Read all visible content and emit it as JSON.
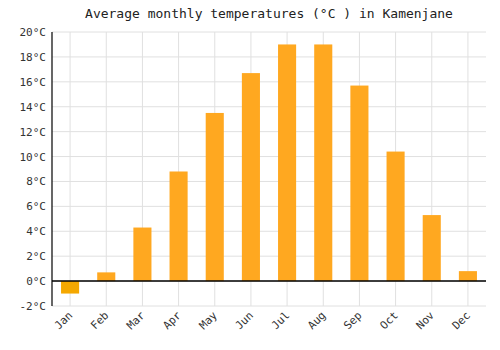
{
  "chart_data": {
    "type": "bar",
    "title": "Average monthly temperatures (°C ) in Kamenjane",
    "categories": [
      "Jan",
      "Feb",
      "Mar",
      "Apr",
      "May",
      "Jun",
      "Jul",
      "Aug",
      "Sep",
      "Oct",
      "Nov",
      "Dec"
    ],
    "values": [
      -1.0,
      0.7,
      4.3,
      8.8,
      13.5,
      16.7,
      19.0,
      19.0,
      15.7,
      10.4,
      5.3,
      0.8
    ],
    "colors": [
      "#F5A800",
      "#FFA820",
      "#FFA820",
      "#FFA820",
      "#FFA820",
      "#FFA820",
      "#FFA820",
      "#FFA820",
      "#FFA820",
      "#FFA820",
      "#FFA820",
      "#FFA820"
    ],
    "ylim": [
      -2,
      20
    ],
    "yticks": [
      {
        "value": -2,
        "label": "-2°C"
      },
      {
        "value": 0,
        "label": "0°C"
      },
      {
        "value": 2,
        "label": "2°C"
      },
      {
        "value": 4,
        "label": "4°C"
      },
      {
        "value": 6,
        "label": "6°C"
      },
      {
        "value": 8,
        "label": "8°C"
      },
      {
        "value": 10,
        "label": "10°C"
      },
      {
        "value": 12,
        "label": "12°C"
      },
      {
        "value": 14,
        "label": "14°C"
      },
      {
        "value": 16,
        "label": "16°C"
      },
      {
        "value": 18,
        "label": "18°C"
      },
      {
        "value": 20,
        "label": "20°C"
      }
    ],
    "grid": true
  }
}
